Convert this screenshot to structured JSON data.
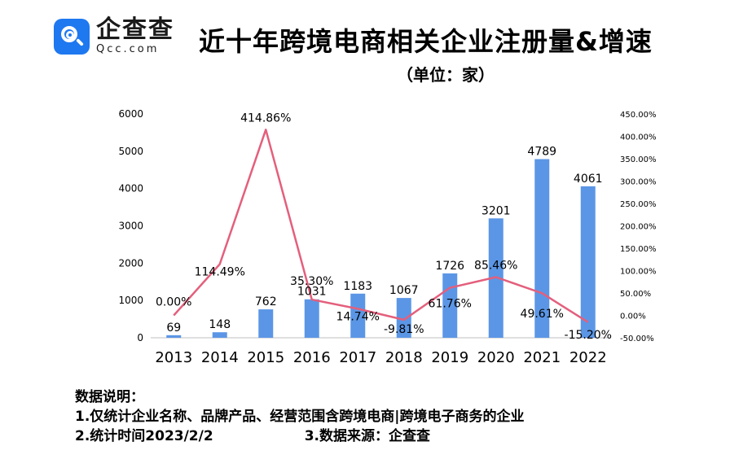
{
  "logo": {
    "name": "企查查",
    "domain": "Qcc.com"
  },
  "header": {
    "title": "近十年跨境电商相关企业注册量&增速",
    "unit": "（单位：家）"
  },
  "colors": {
    "bar": "#5b96e6",
    "line": "#e45f7c",
    "text": "#000000"
  },
  "chart_data": {
    "type": "bar",
    "categories": [
      "2013",
      "2014",
      "2015",
      "2016",
      "2017",
      "2018",
      "2019",
      "2020",
      "2021",
      "2022"
    ],
    "series": [
      {
        "name": "注册量",
        "type": "bar",
        "axis": "left",
        "values": [
          69,
          148,
          762,
          1031,
          1183,
          1067,
          1726,
          3201,
          4789,
          4061
        ]
      },
      {
        "name": "增速",
        "type": "line",
        "axis": "right",
        "values": [
          0.0,
          114.49,
          414.86,
          35.3,
          14.74,
          -9.81,
          61.76,
          85.46,
          49.61,
          -15.2
        ],
        "labels": [
          "0.00%",
          "114.49%",
          "414.86%",
          "35.30%",
          "14.74%",
          "-9.81%",
          "61.76%",
          "85.46%",
          "49.61%",
          "-15.20%"
        ]
      }
    ],
    "y_left": {
      "min": 0,
      "max": 6000,
      "ticks": [
        "0",
        "1000",
        "2000",
        "3000",
        "4000",
        "5000",
        "6000"
      ]
    },
    "y_right": {
      "min": -50,
      "max": 450,
      "ticks": [
        "-50.00%",
        "0.00%",
        "50.00%",
        "100.00%",
        "150.00%",
        "200.00%",
        "250.00%",
        "300.00%",
        "350.00%",
        "400.00%",
        "450.00%"
      ]
    },
    "grid": false
  },
  "notes": {
    "heading": "数据说明：",
    "line1": "1.仅统计企业名称、品牌产品、经营范围含跨境电商|跨境电子商务的企业",
    "line2a": "2.统计时间2023/2/2",
    "line2b": "3.数据来源：企查查"
  }
}
